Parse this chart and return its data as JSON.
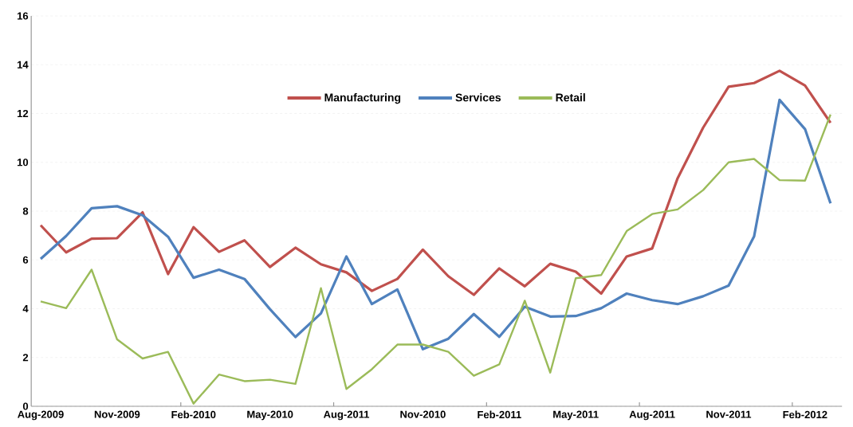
{
  "chart_data": {
    "type": "line",
    "categories": [
      "Aug-2009",
      null,
      null,
      "Nov-2009",
      null,
      null,
      "Feb-2010",
      null,
      null,
      "May-2010",
      null,
      null,
      "Aug-2011",
      null,
      null,
      "Nov-2010",
      null,
      null,
      "Feb-2011",
      null,
      null,
      "May-2011",
      null,
      null,
      "Aug-2011",
      null,
      null,
      "Nov-2011",
      null,
      null,
      "Feb-2012",
      null
    ],
    "series": [
      {
        "name": "Manufacturing",
        "color": "#c0504d",
        "values": [
          7.42,
          6.31,
          6.87,
          6.89,
          7.95,
          5.42,
          7.34,
          6.33,
          6.8,
          5.71,
          6.5,
          5.82,
          5.49,
          4.73,
          5.22,
          6.42,
          5.33,
          4.57,
          5.65,
          4.92,
          5.84,
          5.52,
          4.62,
          6.14,
          6.47,
          9.35,
          11.42,
          13.1,
          13.25,
          13.75,
          13.15,
          11.62
        ]
      },
      {
        "name": "Services",
        "color": "#4f81bd",
        "values": [
          6.04,
          6.98,
          8.12,
          8.2,
          7.83,
          6.95,
          5.27,
          5.6,
          5.22,
          3.98,
          2.84,
          3.81,
          6.14,
          4.19,
          4.79,
          2.34,
          2.77,
          3.78,
          2.85,
          4.08,
          3.68,
          3.7,
          4.02,
          4.62,
          4.35,
          4.19,
          4.51,
          4.95,
          6.96,
          12.56,
          11.36,
          8.32
        ]
      },
      {
        "name": "Retail",
        "color": "#9bbb59",
        "values": [
          4.3,
          4.02,
          5.6,
          2.74,
          1.96,
          2.23,
          0.11,
          1.3,
          1.03,
          1.09,
          0.92,
          4.84,
          0.71,
          1.52,
          2.53,
          2.53,
          2.23,
          1.25,
          1.72,
          4.33,
          1.38,
          5.25,
          5.38,
          7.18,
          7.88,
          8.07,
          8.86,
          10.0,
          10.14,
          9.27,
          9.25,
          11.96
        ]
      }
    ],
    "ylim": [
      0,
      16
    ],
    "yticks": [
      0,
      2,
      4,
      6,
      8,
      10,
      12,
      14,
      16
    ],
    "grid": "y",
    "legend": "top",
    "marker": "none",
    "line_style": "solid"
  }
}
